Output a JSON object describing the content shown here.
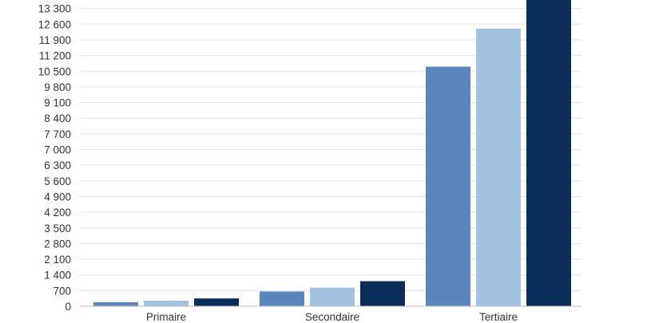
{
  "chart_data": {
    "type": "bar",
    "title": "",
    "xlabel": "",
    "ylabel": "",
    "categories": [
      "Primaire",
      "Secondaire",
      "Tertiaire"
    ],
    "series": [
      {
        "values": [
          180,
          660,
          10700
        ],
        "color": "#5b86bd"
      },
      {
        "values": [
          250,
          830,
          12400
        ],
        "color": "#a3c1e0"
      },
      {
        "values": [
          350,
          1120,
          13700
        ],
        "color": "#0a2d5a"
      }
    ],
    "yticks": [
      0,
      700,
      1400,
      2100,
      2800,
      3500,
      4200,
      4900,
      5600,
      6300,
      7000,
      7700,
      8400,
      9100,
      9800,
      10500,
      11200,
      11900,
      12600,
      13300
    ],
    "ytick_labels": [
      "0",
      "700",
      "1 400",
      "2 100",
      "2 800",
      "3 500",
      "4 200",
      "4 900",
      "5 600",
      "6 300",
      "7 000",
      "7 700",
      "8 400",
      "9 100",
      "9 800",
      "10 500",
      "11 200",
      "11 900",
      "12 600",
      "13 300"
    ],
    "ylim": [
      0,
      13300
    ],
    "grid": true,
    "legend": "none"
  }
}
